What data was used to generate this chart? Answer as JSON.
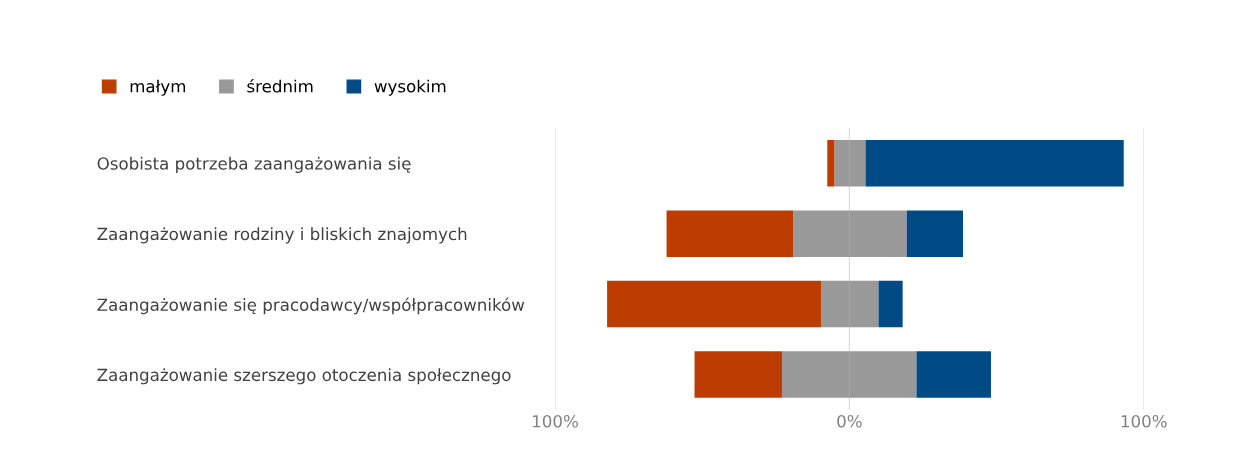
{
  "chart_data": {
    "type": "bar",
    "orientation": "horizontal",
    "stacked": true,
    "categories": [
      "Osobista potrzeba zaangażowania się",
      "Zaangażowanie rodziny i bliskich znajomych",
      "Zaangażowanie się pracodawcy/współpracowników",
      "Zaangażowanie szerszego otoczenia społecznego"
    ],
    "series": [
      {
        "color": "#999999",
        "values": [
          -5.1,
          -19.1,
          -9.6,
          -22.9
        ]
      },
      {
        "name": "małym",
        "color": "#bc3c02",
        "values": [
          -2.4,
          -43.0,
          -72.7,
          -29.7
        ]
      },
      {
        "name": "średnim",
        "color": "#999999",
        "values": [
          5.5,
          19.5,
          9.9,
          22.8
        ]
      },
      {
        "name": "wysokim",
        "color": "#004a85",
        "values": [
          87.7,
          19.1,
          8.2,
          25.3
        ]
      }
    ],
    "xlim": [
      -100,
      100
    ],
    "xticks": [
      {
        "value": -100,
        "label": "100%"
      },
      {
        "value": 0,
        "label": "0%"
      },
      {
        "value": 100,
        "label": "100%"
      }
    ],
    "grid": "x",
    "legend": "top left"
  }
}
